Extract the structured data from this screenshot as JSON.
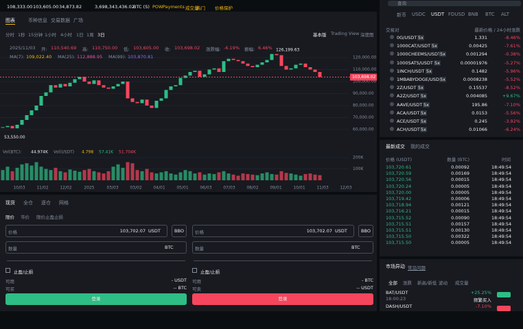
{
  "ticker_bar": {
    "items": [
      "108,333.00",
      "103,605.00",
      "34,873.82",
      "3,698,343,436.02",
      "BTC (S)"
    ],
    "tags": [
      "POW",
      "Payments",
      "成交量",
      "热门",
      "价格保护"
    ]
  },
  "search_placeholder": "查询",
  "tabs": [
    "图表",
    "币种信息",
    "交易数据",
    "广场"
  ],
  "intervals": [
    "分时",
    "1秒",
    "15分钟",
    "1小时",
    "4小时",
    "1日",
    "1周",
    "3日"
  ],
  "views": [
    "基本版",
    "Trading View",
    "深度图"
  ],
  "price_chart": {
    "date": "2025/11/03",
    "stats": [
      {
        "label": "开:",
        "value": "110,540.69"
      },
      {
        "label": "高:",
        "value": "110,750.00"
      },
      {
        "label": "低:",
        "value": "103,605.00"
      },
      {
        "label": "收:",
        "value": "103,698.02"
      },
      {
        "label": "涨跌幅:",
        "value": "-6.19%"
      },
      {
        "label": "振幅:",
        "value": "6.46%"
      }
    ],
    "ma": [
      {
        "label": "MA(7):",
        "value": "109,022.40",
        "color": "#f0b90b"
      },
      {
        "label": "MA(25):",
        "value": "112,888.95",
        "color": "#e84fa3"
      },
      {
        "label": "MA(99):",
        "value": "103,870.81",
        "color": "#8c6cf2"
      }
    ],
    "ylim": [
      50000,
      130000
    ],
    "yticks": [
      {
        "value": 120000,
        "label": "120,000.00"
      },
      {
        "value": 110000,
        "label": "110,000.00"
      },
      {
        "value": 100000,
        "label": "100,000.00"
      },
      {
        "value": 90000,
        "label": "90,000.00"
      },
      {
        "value": 80000,
        "label": "80,000.00"
      },
      {
        "value": 70000,
        "label": "70,000.00"
      },
      {
        "value": 60000,
        "label": "60,000.00"
      }
    ],
    "last_price": {
      "value": 103698.02,
      "label": "103,698.02"
    },
    "high_label": {
      "value": 126199.63,
      "label": "126,199.63"
    },
    "low_label": {
      "value": 53550,
      "label": "53,550.00"
    },
    "closes": [
      62000,
      63000,
      61000,
      64000,
      68000,
      72000,
      76000,
      80000,
      88000,
      91000,
      97000,
      95000,
      98000,
      96000,
      99000,
      102000,
      104000,
      100000,
      98000,
      101000,
      97000,
      95000,
      94000,
      96000,
      98000,
      100000,
      86000,
      83000,
      82000,
      85000,
      80000,
      78000,
      84000,
      86000,
      93000,
      96000,
      97000,
      103000,
      105000,
      108000,
      109000,
      104000,
      106000,
      110000,
      111000,
      108000,
      117000,
      119000,
      118000,
      117000,
      115000,
      113000,
      112000,
      114000,
      116000,
      118000,
      123000,
      122000,
      113000,
      110000,
      111000,
      114000,
      115000,
      112000,
      110000,
      108000,
      103698.02
    ],
    "xlabels": [
      "10/03",
      "11/02",
      "12/02",
      "2025",
      "03/03",
      "03/02",
      "04/01",
      "05/01",
      "06/03",
      "07/03",
      "08/02",
      "09/01",
      "10/01",
      "11/03",
      "12/03"
    ],
    "volume": {
      "stats": [
        "Vol(BTC):",
        "44.974K",
        "Vol(USDT)",
        "4.798",
        "57.41K",
        "51.704K"
      ],
      "ylim": [
        0,
        260000
      ],
      "yticks": [
        {
          "value": 200000,
          "label": "200K"
        },
        {
          "value": 100000,
          "label": "100K"
        }
      ],
      "values": [
        90000,
        120000,
        80000,
        110000,
        140000,
        150000,
        130000,
        160000,
        120000,
        100000,
        90000,
        110000,
        80000,
        70000,
        95000,
        85000,
        75000,
        90000,
        100000,
        80000,
        70000,
        60000,
        80000,
        120000,
        140000,
        110000,
        160000,
        150000,
        90000,
        80000,
        100000,
        70000,
        60000,
        70000,
        80000,
        60000,
        50000,
        70000,
        90000,
        80000,
        60000,
        70000,
        50000,
        60000,
        55000,
        70000,
        80000,
        60000,
        50000,
        40000,
        60000,
        55000,
        50000,
        45000,
        60000,
        70000,
        55000,
        50000,
        80000,
        65000,
        60000,
        50000,
        40000,
        55000,
        60000,
        50000,
        45000
      ]
    }
  },
  "order": {
    "tabs": [
      "现货",
      "全仓",
      "逐仓",
      "网格"
    ],
    "types": [
      "限价",
      "市价",
      "限价止盈止损"
    ],
    "buy": {
      "price_label": "价格",
      "price": "103,702.07",
      "price_unit": "USDT",
      "bbo": "BBO",
      "qty_label": "数量",
      "qty_unit": "BTC",
      "tpsl": "止盈/止损",
      "avail_label": "可用",
      "avail": "- USDT",
      "max_label": "可买",
      "max": "-- BTC",
      "button": "登录"
    },
    "sell": {
      "price_label": "价格",
      "price": "103,702.07",
      "price_unit": "USDT",
      "bbo": "BBO",
      "qty_label": "数量",
      "qty_unit": "BTC",
      "tpsl": "止盈/止损",
      "avail_label": "可用",
      "avail": "- BTC",
      "max_label": "可卖",
      "max": "-- USDT",
      "button": "登录"
    }
  },
  "markets": {
    "tabs": [
      "新币",
      "USDC",
      "USDT",
      "FDUSD",
      "BNB",
      "BTC",
      "ALT"
    ],
    "header": [
      "交易对",
      "最新价格 / 24小时涨跌"
    ],
    "rows": [
      {
        "pair": "0G/USDT",
        "lev": "5x",
        "price": "1.331",
        "change": "-8.46%"
      },
      {
        "pair": "1000CAT/USDT",
        "lev": "5x",
        "price": "0.00425",
        "change": "-7.61%"
      },
      {
        "pair": "1000CHEEMS/USDT",
        "lev": "5x",
        "price": "0.001294",
        "change": "-0.38%"
      },
      {
        "pair": "1000SATS/USDT",
        "lev": "5x",
        "price": "0.00001976",
        "change": "-5.27%"
      },
      {
        "pair": "1INCH/USDT",
        "lev": "5x",
        "price": "0.1482",
        "change": "-5.96%"
      },
      {
        "pair": "1MBABYDOGE/USDT",
        "lev": "5x",
        "price": "0.0008238",
        "change": "-5.52%"
      },
      {
        "pair": "2Z/USDT",
        "lev": "5x",
        "price": "0.15537",
        "change": "-8.52%"
      },
      {
        "pair": "A2Z/USDT",
        "lev": "5x",
        "price": "0.004085",
        "change": "+9.67%"
      },
      {
        "pair": "AAVE/USDT",
        "lev": "5x",
        "price": "195.86",
        "change": "-7.10%"
      },
      {
        "pair": "ACA/USDT",
        "lev": "5x",
        "price": "0.0153",
        "change": "-5.56%"
      },
      {
        "pair": "ACE/USDT",
        "lev": "5x",
        "price": "0.245",
        "change": "-3.92%"
      },
      {
        "pair": "ACH/USDT",
        "lev": "5x",
        "price": "0.01066",
        "change": "-6.24%"
      }
    ]
  },
  "trades": {
    "tabs": [
      "最新成交",
      "我的成交"
    ],
    "header": [
      "价格 (USDT)",
      "数量 (BTC)",
      "时间"
    ],
    "rows": [
      [
        "103,720.61",
        "0.00092",
        "18:49:54"
      ],
      [
        "103,720.59",
        "0.00169",
        "18:49:54"
      ],
      [
        "103,720.56",
        "0.00015",
        "18:49:54"
      ],
      [
        "103,720.24",
        "0.00005",
        "18:49:54"
      ],
      [
        "103,720.00",
        "0.00005",
        "18:49:54"
      ],
      [
        "103,719.42",
        "0.00006",
        "18:49:54"
      ],
      [
        "103,718.94",
        "0.00121",
        "18:49:54"
      ],
      [
        "103,716.21",
        "0.00015",
        "18:49:54"
      ],
      [
        "103,715.52",
        "0.00090",
        "18:49:54"
      ],
      [
        "103,715.51",
        "0.00157",
        "18:49:54"
      ],
      [
        "103,715.51",
        "0.00130",
        "18:49:54"
      ],
      [
        "103,715.50",
        "0.00322",
        "18:49:54"
      ],
      [
        "103,715.50",
        "0.00005",
        "18:49:54"
      ]
    ]
  },
  "movers": {
    "title": "市场异动",
    "link": "常见问题",
    "tabs": [
      "全部",
      "涨跌",
      "新高/新低",
      "波动",
      "成交量"
    ],
    "rows": [
      {
        "pair": "BAT/USDT",
        "time": "18:00:23",
        "change": "+25.25%",
        "note": "频繁买入"
      },
      {
        "pair": "DASH/USDT",
        "change": "-7.10%"
      }
    ]
  }
}
